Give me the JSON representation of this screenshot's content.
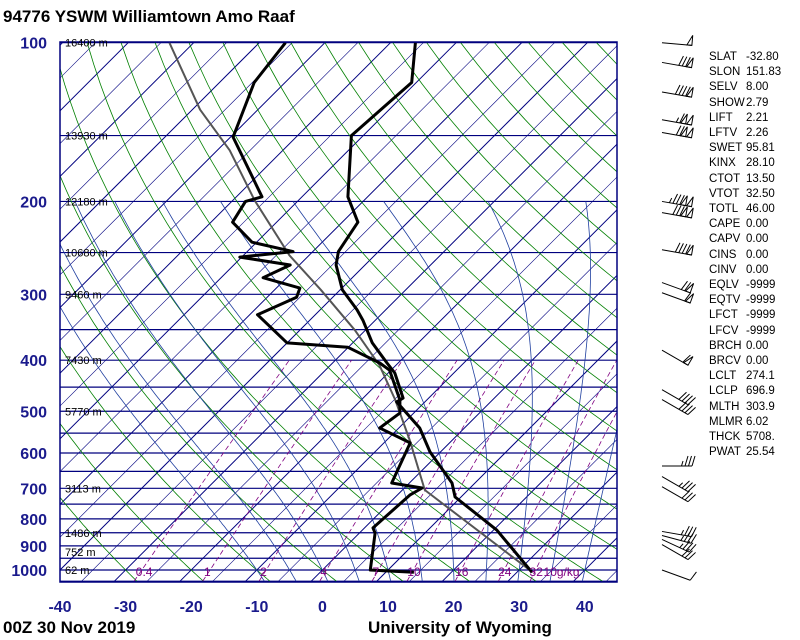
{
  "header": {
    "title": "94776 YSWM Williamtown Amo Raaf"
  },
  "footer": {
    "time": "00Z 30 Nov 2019",
    "source": "University of Wyoming"
  },
  "indices": [
    {
      "k": "SLAT",
      "v": "-32.80"
    },
    {
      "k": "SLON",
      "v": "151.83"
    },
    {
      "k": "SELV",
      "v": "8.00"
    },
    {
      "k": "SHOW",
      "v": "2.79"
    },
    {
      "k": "LIFT",
      "v": "2.21"
    },
    {
      "k": "LFTV",
      "v": "2.26"
    },
    {
      "k": "SWET",
      "v": "95.81"
    },
    {
      "k": "KINX",
      "v": "28.10"
    },
    {
      "k": "CTOT",
      "v": "13.50"
    },
    {
      "k": "VTOT",
      "v": "32.50"
    },
    {
      "k": "TOTL",
      "v": "46.00"
    },
    {
      "k": "CAPE",
      "v": "0.00"
    },
    {
      "k": "CAPV",
      "v": "0.00"
    },
    {
      "k": "CINS",
      "v": "0.00"
    },
    {
      "k": "CINV",
      "v": "0.00"
    },
    {
      "k": "EQLV",
      "v": "-9999"
    },
    {
      "k": "EQTV",
      "v": "-9999"
    },
    {
      "k": "LFCT",
      "v": "-9999"
    },
    {
      "k": "LFCV",
      "v": "-9999"
    },
    {
      "k": "BRCH",
      "v": "0.00"
    },
    {
      "k": "BRCV",
      "v": "0.00"
    },
    {
      "k": "LCLT",
      "v": "274.1"
    },
    {
      "k": "LCLP",
      "v": "696.9"
    },
    {
      "k": "MLTH",
      "v": "303.9"
    },
    {
      "k": "MLMR",
      "v": "6.02"
    },
    {
      "k": "THCK",
      "v": "5708."
    },
    {
      "k": "PWAT",
      "v": "25.54"
    }
  ],
  "chart_data": {
    "type": "skew-t",
    "title": "94776 YSWM Williamtown Amo Raaf",
    "pressure_ticks": [
      {
        "p": 100,
        "label": "100"
      },
      {
        "p": 200,
        "label": "200"
      },
      {
        "p": 300,
        "label": "300"
      },
      {
        "p": 400,
        "label": "400"
      },
      {
        "p": 500,
        "label": "500"
      },
      {
        "p": 600,
        "label": "600"
      },
      {
        "p": 700,
        "label": "700"
      },
      {
        "p": 800,
        "label": "800"
      },
      {
        "p": 900,
        "label": "900"
      },
      {
        "p": 1000,
        "label": "1000"
      }
    ],
    "temp_ticks": [
      {
        "t": -40,
        "label": "-40"
      },
      {
        "t": -30,
        "label": "-30"
      },
      {
        "t": -20,
        "label": "-20"
      },
      {
        "t": -10,
        "label": "-10"
      },
      {
        "t": 0,
        "label": "0"
      },
      {
        "t": 10,
        "label": "10"
      },
      {
        "t": 20,
        "label": "20"
      },
      {
        "t": 30,
        "label": "30"
      },
      {
        "t": 40,
        "label": "40"
      }
    ],
    "plim": [
      1050,
      100
    ],
    "tlim_at_1000": [
      -40,
      45
    ],
    "height_labels": [
      {
        "p": 100,
        "label": "16400 m"
      },
      {
        "p": 150,
        "label": "13930 m"
      },
      {
        "p": 200,
        "label": "12180 m"
      },
      {
        "p": 250,
        "label": "10680 m"
      },
      {
        "p": 300,
        "label": "9460 m"
      },
      {
        "p": 400,
        "label": "7430 m"
      },
      {
        "p": 500,
        "label": "5770 m"
      },
      {
        "p": 700,
        "label": "3113 m"
      },
      {
        "p": 850,
        "label": "1486 m"
      },
      {
        "p": 925,
        "label": "752 m"
      },
      {
        "p": 1000,
        "label": "62 m"
      }
    ],
    "mixing_ratio_labels": [
      {
        "w": 0.4,
        "label": "0.4"
      },
      {
        "w": 1,
        "label": "1"
      },
      {
        "w": 2,
        "label": "2"
      },
      {
        "w": 4,
        "label": "4"
      },
      {
        "w": 7,
        "label": "7"
      },
      {
        "w": 10,
        "label": "10"
      },
      {
        "w": 16,
        "label": "16"
      },
      {
        "w": 24,
        "label": "24"
      },
      {
        "w": 32,
        "label": "32"
      }
    ],
    "mixing_ratio_unit": "10g/kg",
    "temperature": [
      [
        1010,
        32.3
      ],
      [
        840,
        20.5
      ],
      [
        727,
        9.1
      ],
      [
        684,
        6.5
      ],
      [
        597,
        -1.6
      ],
      [
        538,
        -6.8
      ],
      [
        480,
        -14.3
      ],
      [
        472,
        -13.9
      ],
      [
        423,
        -19
      ],
      [
        405,
        -21.7
      ],
      [
        371,
        -27
      ],
      [
        336,
        -31.9
      ],
      [
        321,
        -34.4
      ],
      [
        294,
        -39.7
      ],
      [
        264,
        -44.4
      ],
      [
        249,
        -46.1
      ],
      [
        219,
        -47.6
      ],
      [
        196,
        -53
      ],
      [
        150,
        -61.8
      ],
      [
        119,
        -60.7
      ],
      [
        100,
        -66.2
      ]
    ],
    "dewpoint": [
      [
        1010,
        14.3
      ],
      [
        1000,
        7.3
      ],
      [
        851,
        2.4
      ],
      [
        832,
        1.3
      ],
      [
        721,
        1.9
      ],
      [
        699,
        2.7
      ],
      [
        684,
        -2.7
      ],
      [
        574,
        -6
      ],
      [
        538,
        -12.9
      ],
      [
        504,
        -12.1
      ],
      [
        476,
        -14.1
      ],
      [
        418,
        -20.2
      ],
      [
        405,
        -22.8
      ],
      [
        378,
        -30.1
      ],
      [
        371,
        -40
      ],
      [
        328,
        -48.8
      ],
      [
        304,
        -45.5
      ],
      [
        292,
        -46.4
      ],
      [
        279,
        -53.6
      ],
      [
        264,
        -51.4
      ],
      [
        255,
        -60.3
      ],
      [
        249,
        -53
      ],
      [
        239,
        -60.7
      ],
      [
        219,
        -66.7
      ],
      [
        200,
        -67.9
      ],
      [
        196,
        -66.1
      ],
      [
        151,
        -79.6
      ],
      [
        119,
        -84.7
      ],
      [
        100,
        -86
      ]
    ],
    "parcel": [
      [
        1010,
        32.4
      ],
      [
        705,
        3.4
      ],
      [
        567,
        -6.5
      ],
      [
        476,
        -14.8
      ],
      [
        409,
        -22.5
      ],
      [
        351,
        -31.6
      ],
      [
        294,
        -43
      ],
      [
        253,
        -53
      ],
      [
        199,
        -66.7
      ],
      [
        160,
        -78.1
      ],
      [
        134,
        -88.8
      ],
      [
        100,
        -103.7
      ]
    ],
    "winds": [
      {
        "p": 100,
        "dir": 275,
        "kt": 50
      },
      {
        "p": 109,
        "dir": 280,
        "kt": 80
      },
      {
        "p": 124,
        "dir": 280,
        "kt": 90
      },
      {
        "p": 140,
        "dir": 280,
        "kt": 115
      },
      {
        "p": 148,
        "dir": 280,
        "kt": 120
      },
      {
        "p": 200,
        "dir": 280,
        "kt": 135
      },
      {
        "p": 210,
        "dir": 280,
        "kt": 130
      },
      {
        "p": 247,
        "dir": 280,
        "kt": 90
      },
      {
        "p": 285,
        "dir": 290,
        "kt": 70
      },
      {
        "p": 298,
        "dir": 290,
        "kt": 60
      },
      {
        "p": 383,
        "dir": 300,
        "kt": 60
      },
      {
        "p": 455,
        "dir": 300,
        "kt": 40
      },
      {
        "p": 475,
        "dir": 300,
        "kt": 40
      },
      {
        "p": 635,
        "dir": 270,
        "kt": 35
      },
      {
        "p": 665,
        "dir": 300,
        "kt": 35
      },
      {
        "p": 695,
        "dir": 300,
        "kt": 30
      },
      {
        "p": 845,
        "dir": 280,
        "kt": 35
      },
      {
        "p": 860,
        "dir": 285,
        "kt": 35
      },
      {
        "p": 875,
        "dir": 295,
        "kt": 35
      },
      {
        "p": 895,
        "dir": 300,
        "kt": 30
      },
      {
        "p": 1000,
        "dir": 290,
        "kt": 10
      }
    ],
    "colors": {
      "isobar": "#00007f",
      "isotherm": "#00007f",
      "dry_adiabat": "#007f00",
      "moist_adiabat": "#1f3f9f",
      "mixing_ratio": "#800080",
      "temperature": "#000000",
      "dewpoint": "#000000",
      "parcel": "#555555",
      "axis_label": "#1a1a8c"
    }
  }
}
